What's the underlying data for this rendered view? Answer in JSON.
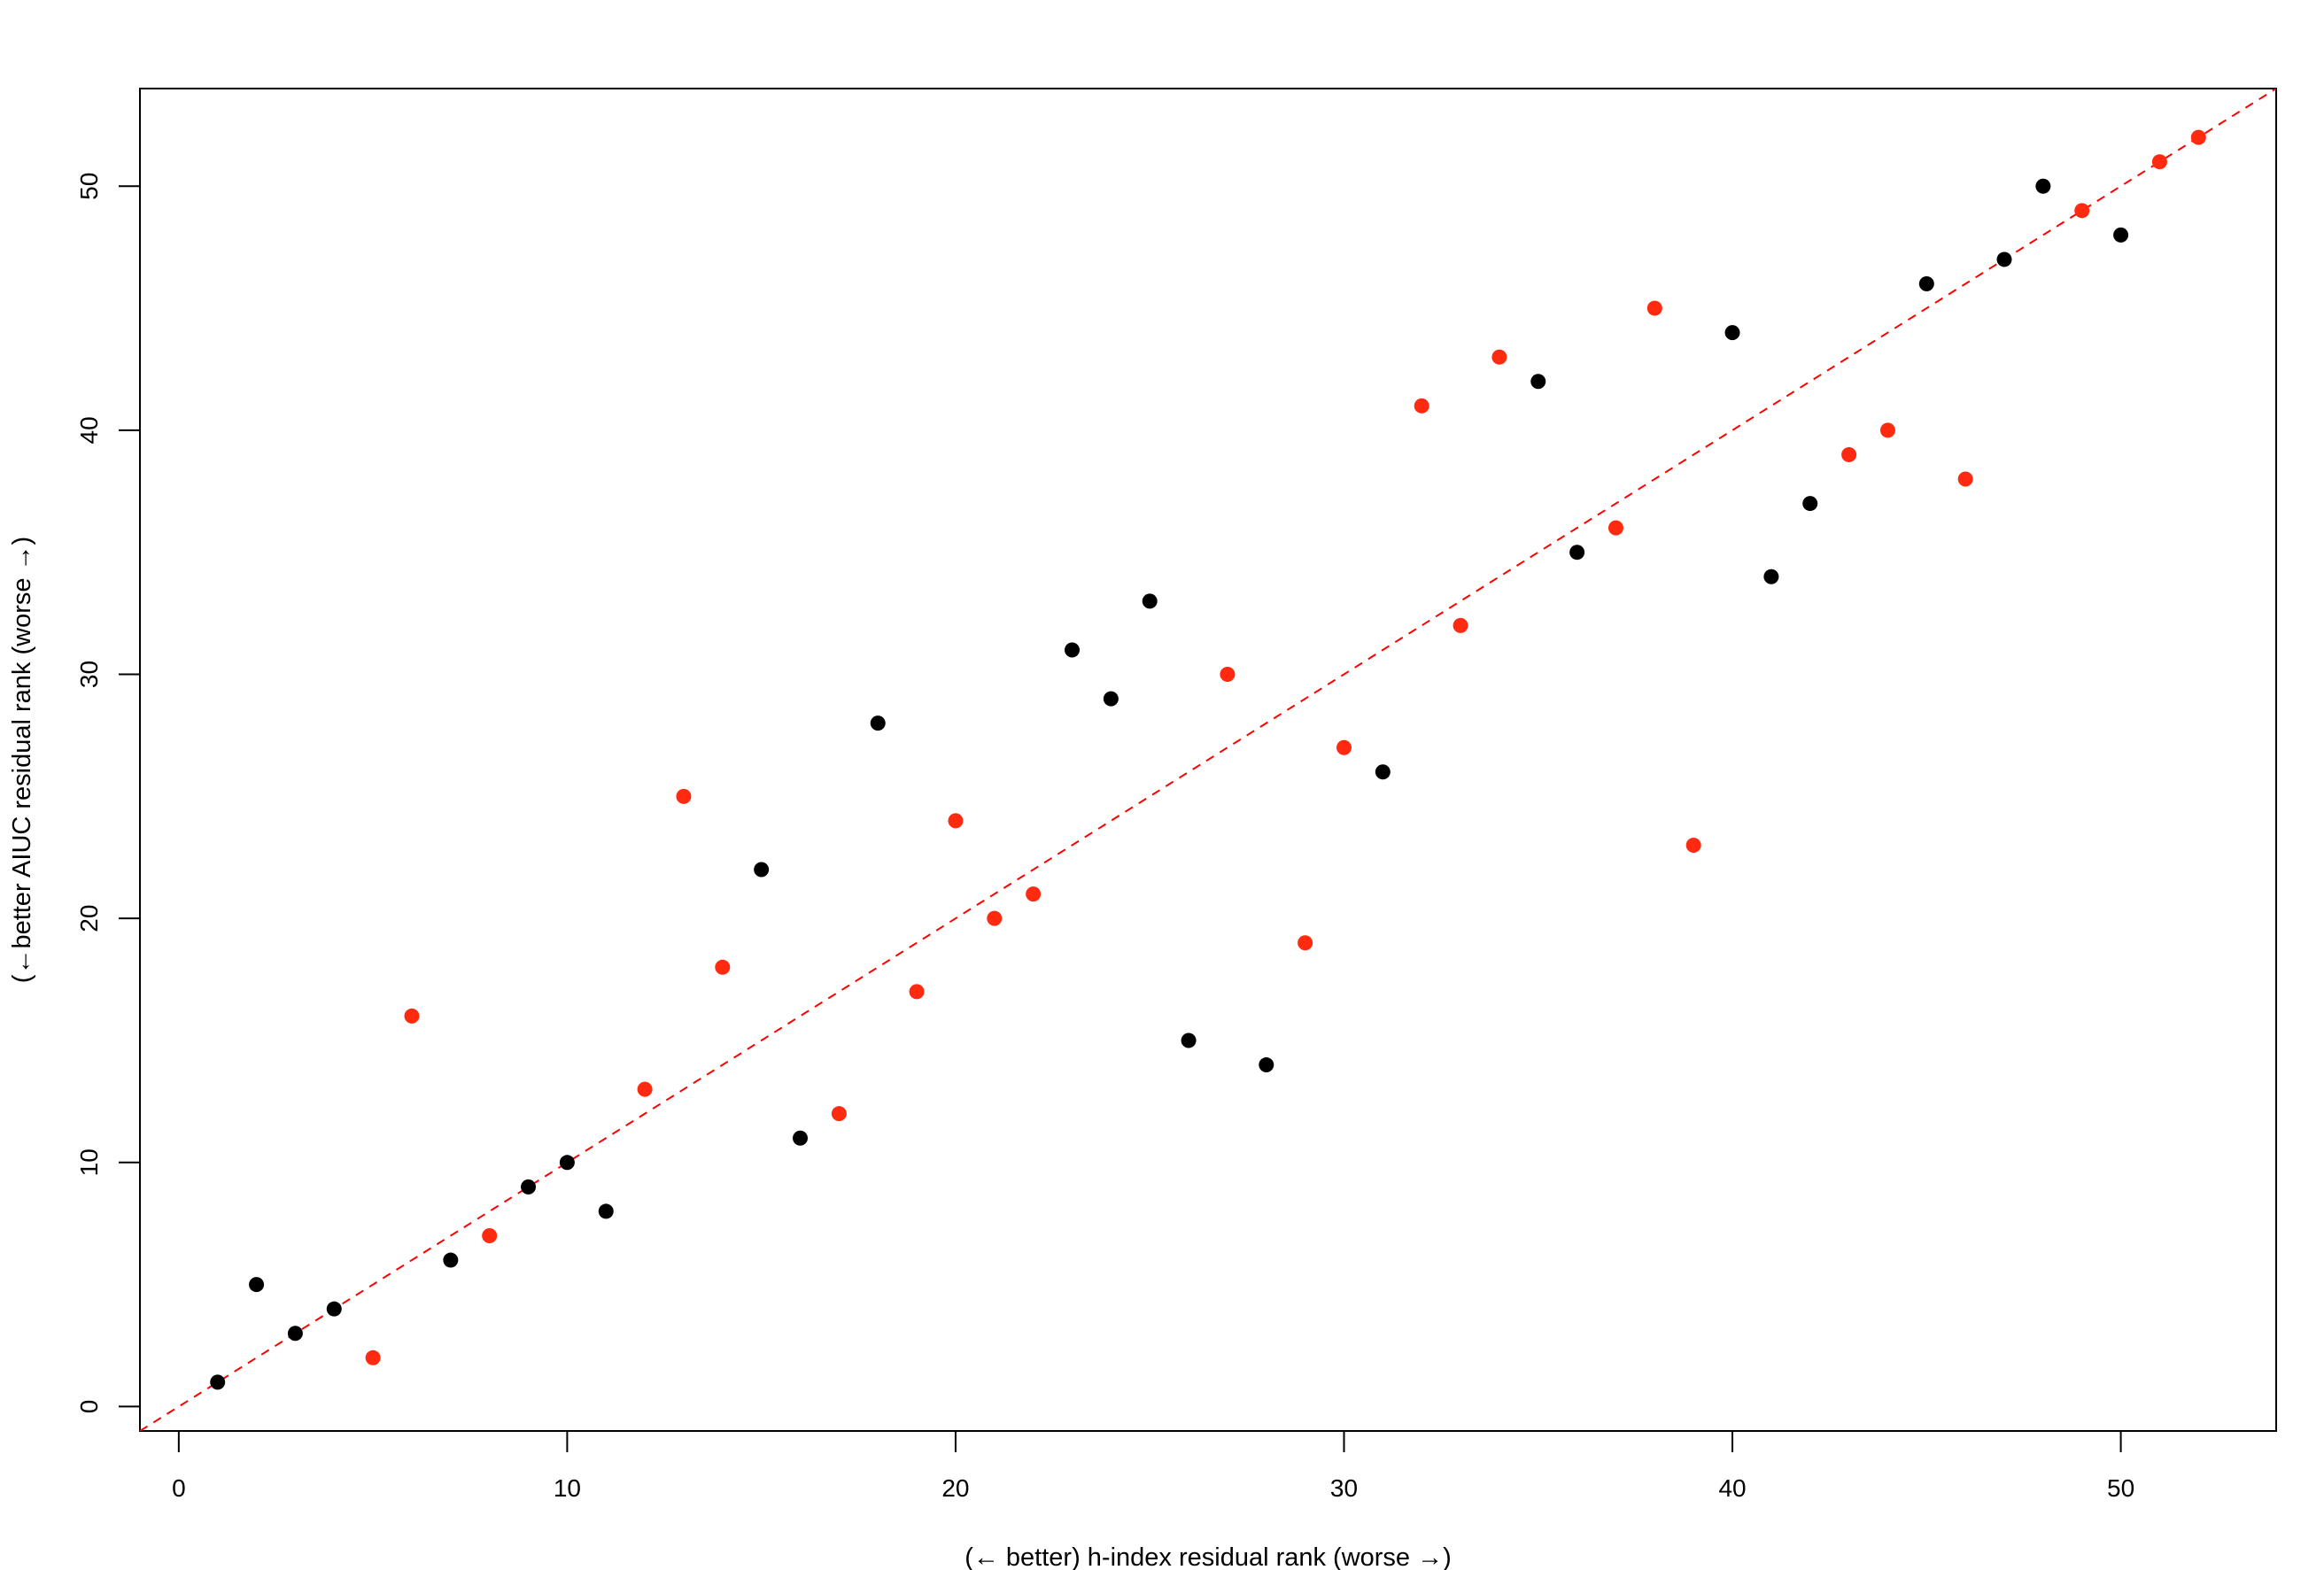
{
  "chart_data": {
    "type": "scatter",
    "title": "",
    "xlabel": "(← better) h-index residual rank (worse →)",
    "ylabel": "(←better AIUC residual rank (worse →)",
    "xlim": [
      -1,
      54
    ],
    "ylim": [
      -1,
      54
    ],
    "xticks": [
      0,
      10,
      20,
      30,
      40,
      50
    ],
    "yticks": [
      0,
      10,
      20,
      30,
      40,
      50
    ],
    "grid": false,
    "reference_line": {
      "slope": 1,
      "intercept": 0,
      "style": "dashed",
      "color": "#ff0000"
    },
    "series": [
      {
        "color": "#000000",
        "points": [
          [
            1,
            1
          ],
          [
            2,
            5
          ],
          [
            3,
            3
          ],
          [
            4,
            4
          ],
          [
            7,
            6
          ],
          [
            9,
            9
          ],
          [
            10,
            10
          ],
          [
            11,
            8
          ],
          [
            15,
            22
          ],
          [
            16,
            11
          ],
          [
            18,
            28
          ],
          [
            23,
            31
          ],
          [
            24,
            29
          ],
          [
            25,
            33
          ],
          [
            26,
            15
          ],
          [
            28,
            14
          ],
          [
            31,
            26
          ],
          [
            35,
            42
          ],
          [
            36,
            35
          ],
          [
            40,
            44
          ],
          [
            41,
            34
          ],
          [
            42,
            37
          ],
          [
            45,
            46
          ],
          [
            47,
            47
          ],
          [
            48,
            50
          ],
          [
            50,
            48
          ]
        ]
      },
      {
        "color": "#ff2a0f",
        "points": [
          [
            5,
            2
          ],
          [
            6,
            16
          ],
          [
            8,
            7
          ],
          [
            12,
            13
          ],
          [
            13,
            25
          ],
          [
            14,
            18
          ],
          [
            17,
            12
          ],
          [
            19,
            17
          ],
          [
            20,
            24
          ],
          [
            21,
            20
          ],
          [
            22,
            21
          ],
          [
            27,
            30
          ],
          [
            29,
            19
          ],
          [
            30,
            27
          ],
          [
            32,
            41
          ],
          [
            33,
            32
          ],
          [
            34,
            43
          ],
          [
            37,
            36
          ],
          [
            38,
            45
          ],
          [
            39,
            23
          ],
          [
            43,
            39
          ],
          [
            44,
            40
          ],
          [
            46,
            38
          ],
          [
            49,
            49
          ],
          [
            51,
            51
          ],
          [
            52,
            52
          ]
        ]
      }
    ]
  }
}
